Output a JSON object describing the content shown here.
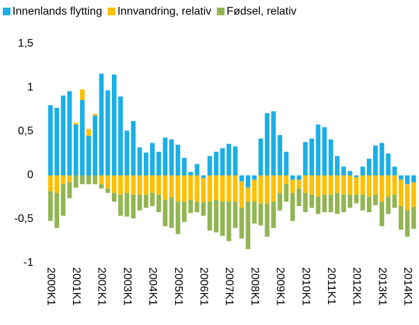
{
  "chart_data": {
    "type": "stacked_bar",
    "categories": [
      "2000K1",
      null,
      null,
      null,
      "2001K1",
      null,
      null,
      null,
      "2002K1",
      null,
      null,
      null,
      "2003K1",
      null,
      null,
      null,
      "2004K1",
      null,
      null,
      null,
      "2005K1",
      null,
      null,
      null,
      "2006K1",
      null,
      null,
      null,
      "2007K1",
      null,
      null,
      null,
      "2008K1",
      null,
      null,
      null,
      "2009K1",
      null,
      null,
      null,
      "2010K1",
      null,
      null,
      null,
      "2011K1",
      null,
      null,
      null,
      "2012K1",
      null,
      null,
      null,
      "2013K1",
      null,
      null,
      null,
      "2014K1",
      null
    ],
    "series": [
      {
        "name": "Innenlands flytting",
        "color": "#1aafe6",
        "values": [
          0.8,
          0.77,
          0.91,
          0.96,
          0.58,
          0.86,
          0.45,
          0.68,
          1.16,
          0.97,
          1.15,
          0.9,
          0.51,
          0.62,
          0.32,
          0.26,
          0.37,
          0.27,
          0.43,
          0.41,
          0.35,
          0.2,
          0.04,
          0.13,
          -0.03,
          0.22,
          0.27,
          0.31,
          0.36,
          0.33,
          -0.07,
          -0.14,
          -0.05,
          0.42,
          0.71,
          0.73,
          0.46,
          0.27,
          -0.05,
          -0.05,
          0.38,
          0.42,
          0.58,
          0.55,
          0.41,
          0.22,
          0.1,
          0.05,
          -0.02,
          0.1,
          0.19,
          0.34,
          0.37,
          0.25,
          0.1,
          -0.05,
          -0.1,
          -0.08
        ]
      },
      {
        "name": "Innvandring, relativ",
        "color": "#ffc000",
        "values": [
          -0.18,
          -0.2,
          -0.1,
          -0.08,
          0.02,
          0.12,
          0.08,
          0.02,
          -0.1,
          -0.15,
          -0.2,
          -0.22,
          -0.2,
          -0.22,
          -0.22,
          -0.22,
          -0.2,
          -0.22,
          -0.28,
          -0.25,
          -0.3,
          -0.3,
          -0.28,
          -0.3,
          -0.28,
          -0.3,
          -0.28,
          -0.3,
          -0.3,
          -0.3,
          -0.3,
          -0.16,
          -0.25,
          -0.32,
          -0.32,
          -0.3,
          -0.2,
          -0.1,
          -0.15,
          -0.1,
          -0.2,
          -0.22,
          -0.24,
          -0.22,
          -0.22,
          -0.2,
          -0.22,
          -0.22,
          -0.2,
          -0.22,
          -0.24,
          -0.22,
          -0.3,
          -0.24,
          -0.22,
          -0.3,
          -0.3,
          -0.28
        ]
      },
      {
        "name": "Fødsel, relativ",
        "color": "#92b553",
        "values": [
          -0.34,
          -0.4,
          -0.36,
          -0.18,
          -0.14,
          -0.1,
          -0.1,
          -0.1,
          -0.05,
          -0.05,
          -0.1,
          -0.24,
          -0.27,
          -0.27,
          -0.18,
          -0.15,
          -0.15,
          -0.2,
          -0.3,
          -0.35,
          -0.37,
          -0.23,
          -0.15,
          -0.12,
          -0.15,
          -0.33,
          -0.37,
          -0.39,
          -0.45,
          -0.3,
          -0.35,
          -0.54,
          -0.25,
          -0.25,
          -0.38,
          -0.3,
          -0.2,
          -0.2,
          -0.32,
          -0.2,
          -0.22,
          -0.15,
          -0.2,
          -0.2,
          -0.2,
          -0.24,
          -0.2,
          -0.15,
          -0.1,
          -0.18,
          -0.18,
          -0.12,
          -0.28,
          -0.2,
          -0.15,
          -0.27,
          -0.3,
          -0.25
        ]
      }
    ],
    "ylim": [
      -1,
      1.5
    ],
    "yticks": [
      -1,
      {
        "value": -0.5,
        "label": "-0,5"
      },
      0,
      {
        "value": 0.5,
        "label": "0,5"
      },
      1,
      {
        "value": 1.5,
        "label": "1,5"
      }
    ],
    "legend": "top",
    "grid": false
  }
}
